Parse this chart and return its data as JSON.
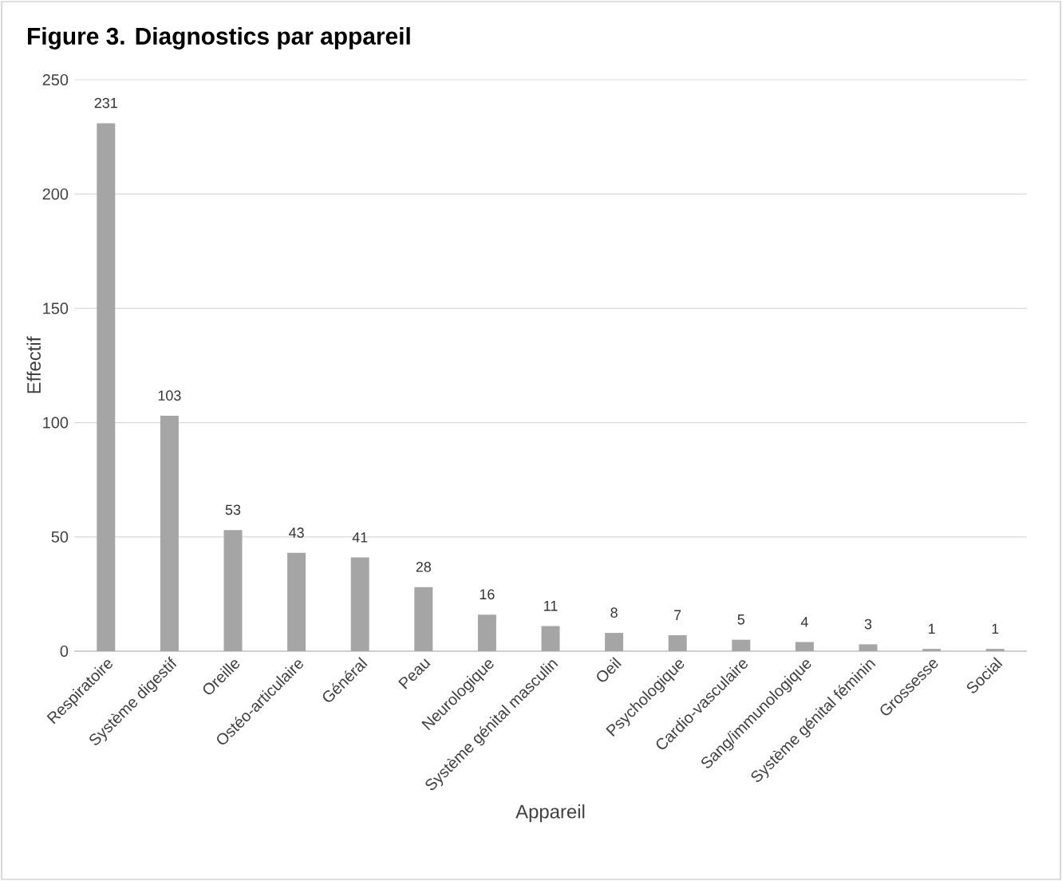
{
  "chart_data": {
    "type": "bar",
    "title": "Figure 3. Diagnostics par appareil",
    "xlabel": "Appareil",
    "ylabel": "Effectif",
    "categories": [
      "Respiratoire",
      "Système digestif",
      "Oreille",
      "Ostéo-articulaire",
      "Général",
      "Peau",
      "Neurologique",
      "Système génital masculin",
      "Oeil",
      "Psychologique",
      "Cardio-vasculaire",
      "Sang/immunologique",
      "Système génital féminin",
      "Grossesse",
      "Social"
    ],
    "values": [
      231,
      103,
      53,
      43,
      41,
      28,
      16,
      11,
      8,
      7,
      5,
      4,
      3,
      1,
      1
    ],
    "color": "#a5a5a5",
    "ylim": [
      0,
      250
    ],
    "yticks": [
      0,
      50,
      100,
      150,
      200,
      250
    ],
    "grid": "y",
    "data_labels": true
  }
}
